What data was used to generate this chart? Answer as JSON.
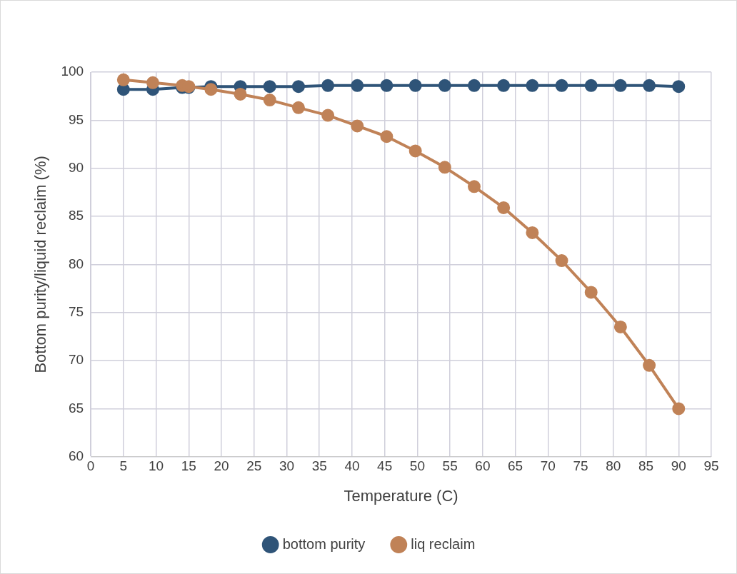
{
  "chart_data": {
    "type": "line",
    "xlabel": "Temperature (C)",
    "ylabel": "Bottom purity/liquid reclaim (%)",
    "xlim": [
      0,
      95
    ],
    "xticks": [
      0,
      5,
      10,
      15,
      20,
      25,
      30,
      35,
      40,
      45,
      50,
      55,
      60,
      65,
      70,
      75,
      80,
      85,
      90,
      95
    ],
    "ylim": [
      60,
      100
    ],
    "yticks": [
      60,
      65,
      70,
      75,
      80,
      85,
      90,
      95,
      100
    ],
    "grid": true,
    "legend": "bottom",
    "marker": "circle",
    "line_style": "solid",
    "series": [
      {
        "name": "bottom purity",
        "color": "#2f5478",
        "x": [
          5,
          9.5,
          14,
          15,
          18.4,
          22.9,
          27.4,
          31.8,
          36.3,
          40.8,
          45.3,
          49.7,
          54.2,
          58.7,
          63.2,
          67.6,
          72.1,
          76.6,
          81.1,
          85.5,
          90
        ],
        "values": [
          98.2,
          98.2,
          98.4,
          98.4,
          98.5,
          98.5,
          98.5,
          98.5,
          98.6,
          98.6,
          98.6,
          98.6,
          98.6,
          98.6,
          98.6,
          98.6,
          98.6,
          98.6,
          98.6,
          98.6,
          98.5
        ]
      },
      {
        "name": "liq reclaim",
        "color": "#c08257",
        "x": [
          5,
          9.5,
          14,
          15,
          18.4,
          22.9,
          27.4,
          31.8,
          36.3,
          40.8,
          45.3,
          49.7,
          54.2,
          58.7,
          63.2,
          67.6,
          72.1,
          76.6,
          81.1,
          85.5,
          90
        ],
        "values": [
          99.2,
          98.9,
          98.6,
          98.5,
          98.2,
          97.7,
          97.1,
          96.3,
          95.5,
          94.4,
          93.3,
          91.8,
          90.1,
          88.1,
          85.9,
          83.3,
          80.4,
          77.1,
          73.5,
          69.5,
          65.0
        ]
      }
    ]
  }
}
